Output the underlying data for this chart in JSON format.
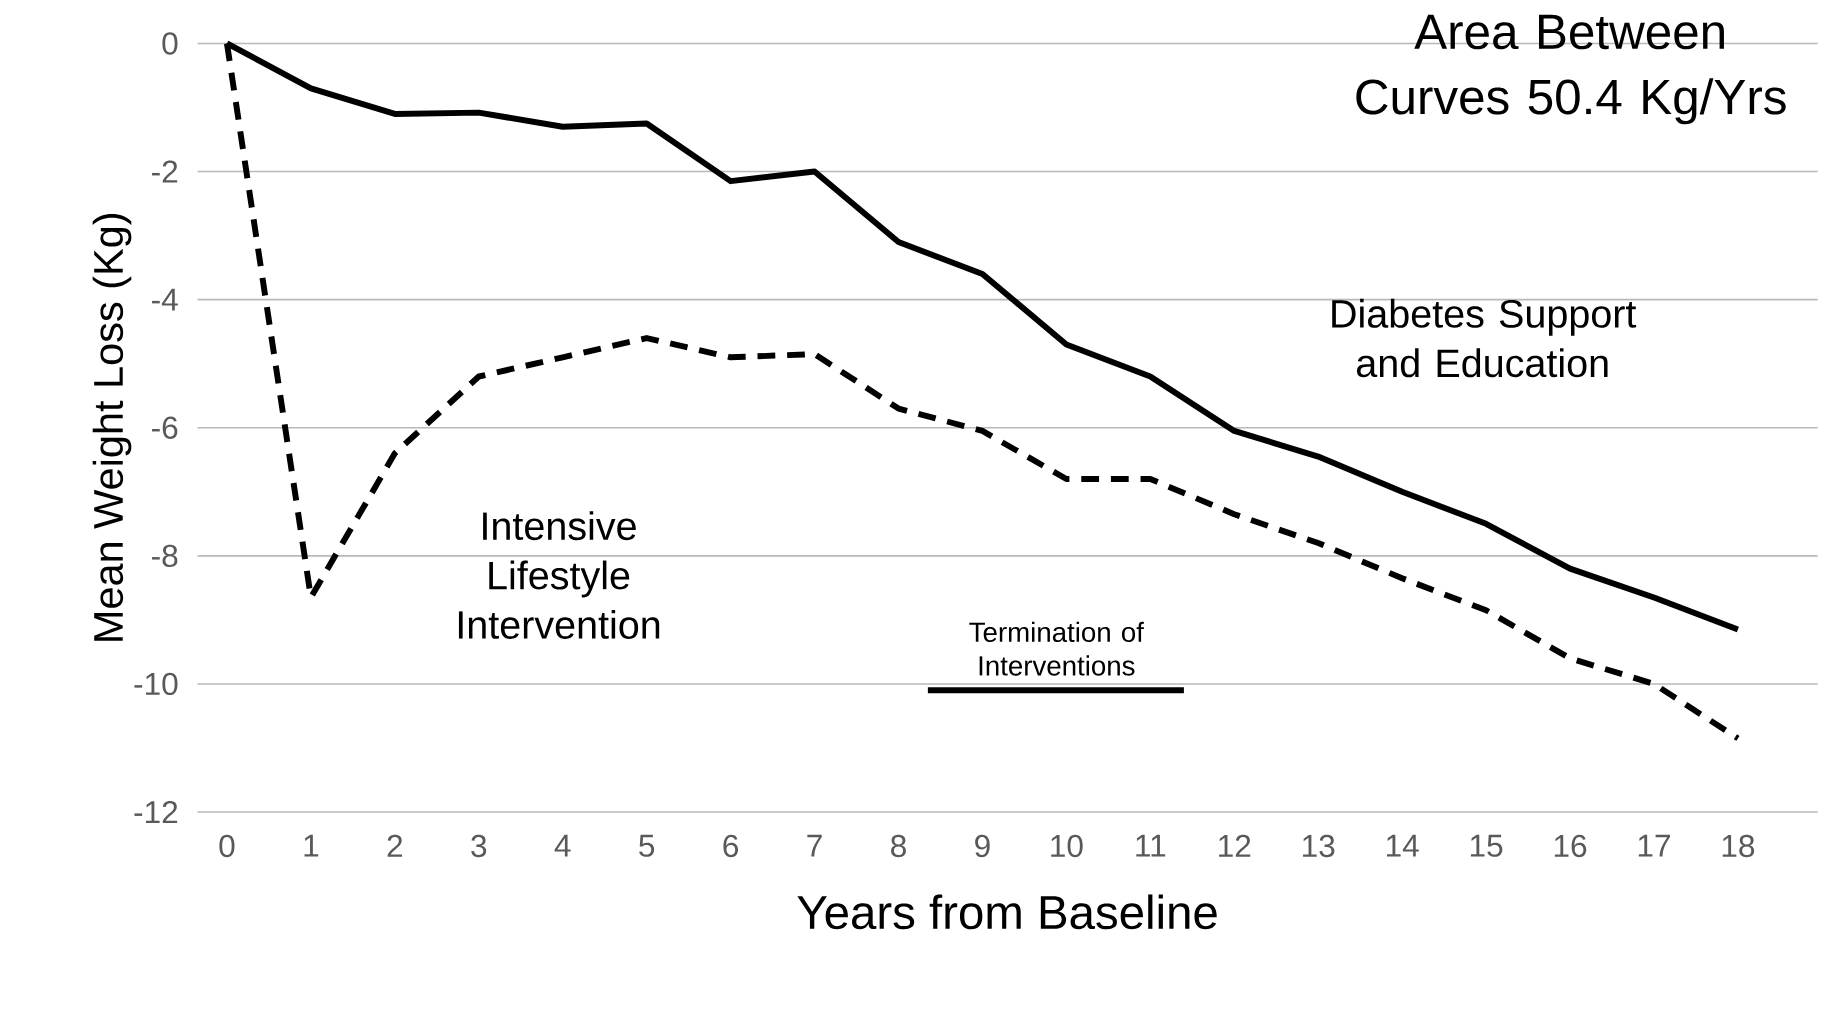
{
  "chart_data": {
    "type": "line",
    "xlabel": "Years from Baseline",
    "ylabel": "Mean Weight Loss (Kg)",
    "annotations": [
      "Area Between Curves 50.4 Kg/Yrs"
    ],
    "x": [
      0,
      1,
      2,
      3,
      4,
      5,
      6,
      7,
      8,
      9,
      10,
      11,
      12,
      13,
      14,
      15,
      16,
      17,
      18
    ],
    "series": [
      {
        "name": "Diabetes Support and Education",
        "color": "#000000",
        "line_style": "solid",
        "values": [
          0,
          -0.7,
          -1.1,
          -1.08,
          -1.3,
          -1.25,
          -2.15,
          -2.0,
          -3.1,
          -3.6,
          -4.7,
          -5.2,
          -6.05,
          -6.45,
          -7.0,
          -7.5,
          -8.2,
          -8.65,
          -9.15
        ]
      },
      {
        "name": "Intensive Lifestyle Intervention",
        "color": "#000000",
        "line_style": "dashed",
        "values": [
          0,
          -8.65,
          -6.4,
          -5.2,
          -4.9,
          -4.6,
          -4.9,
          -4.85,
          -5.7,
          -6.05,
          -6.8,
          -6.8,
          -7.35,
          -7.8,
          -8.35,
          -8.85,
          -9.6,
          -10.0,
          -10.85
        ]
      },
      {
        "name": "Termination of Interventions",
        "color": "#000000",
        "line_style": "solid",
        "x": [
          8.35,
          11.4
        ],
        "values": [
          -10.1,
          -10.1
        ]
      }
    ],
    "xlim": [
      -0.35,
      18.95
    ],
    "ylim": [
      -12,
      0
    ],
    "xticks": [
      0,
      1,
      2,
      3,
      4,
      5,
      6,
      7,
      8,
      9,
      10,
      11,
      12,
      13,
      14,
      15,
      16,
      17,
      18
    ],
    "yticks": [
      -12,
      -10,
      -8,
      -6,
      -4,
      -2,
      0
    ],
    "grid": "y",
    "marker": "none"
  }
}
